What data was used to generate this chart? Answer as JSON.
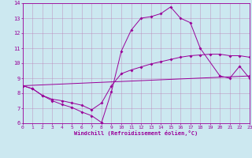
{
  "bg_color": "#cce8f0",
  "line_color": "#990099",
  "grid_color": "#bb88bb",
  "xlabel": "Windchill (Refroidissement éolien,°C)",
  "xlim": [
    0,
    23
  ],
  "ylim": [
    6,
    14
  ],
  "xticks": [
    0,
    1,
    2,
    3,
    4,
    5,
    6,
    7,
    8,
    9,
    10,
    11,
    12,
    13,
    14,
    15,
    16,
    17,
    18,
    19,
    20,
    21,
    22,
    23
  ],
  "yticks": [
    6,
    7,
    8,
    9,
    10,
    11,
    12,
    13,
    14
  ],
  "line1_x": [
    0,
    1,
    2,
    3,
    4,
    5,
    6,
    7,
    8,
    9,
    10,
    11,
    12,
    13,
    14,
    15,
    16,
    17,
    18,
    20,
    21,
    22,
    23
  ],
  "line1_y": [
    8.5,
    8.3,
    7.85,
    7.5,
    7.25,
    7.05,
    6.75,
    6.5,
    6.05,
    8.1,
    10.8,
    12.2,
    13.0,
    13.1,
    13.3,
    13.75,
    13.0,
    12.7,
    11.0,
    9.15,
    9.0,
    9.8,
    9.0
  ],
  "line2_x": [
    0,
    1,
    2,
    3,
    4,
    5,
    6,
    7,
    8,
    9,
    10,
    11,
    12,
    13,
    14,
    15,
    16,
    17,
    18,
    19,
    20,
    21,
    22,
    23
  ],
  "line2_y": [
    8.5,
    8.3,
    7.85,
    7.6,
    7.5,
    7.35,
    7.2,
    6.9,
    7.35,
    8.5,
    9.3,
    9.55,
    9.75,
    9.95,
    10.1,
    10.25,
    10.4,
    10.5,
    10.55,
    10.6,
    10.6,
    10.5,
    10.5,
    10.4
  ],
  "line3_x": [
    0,
    23
  ],
  "line3_y": [
    8.5,
    9.15
  ]
}
